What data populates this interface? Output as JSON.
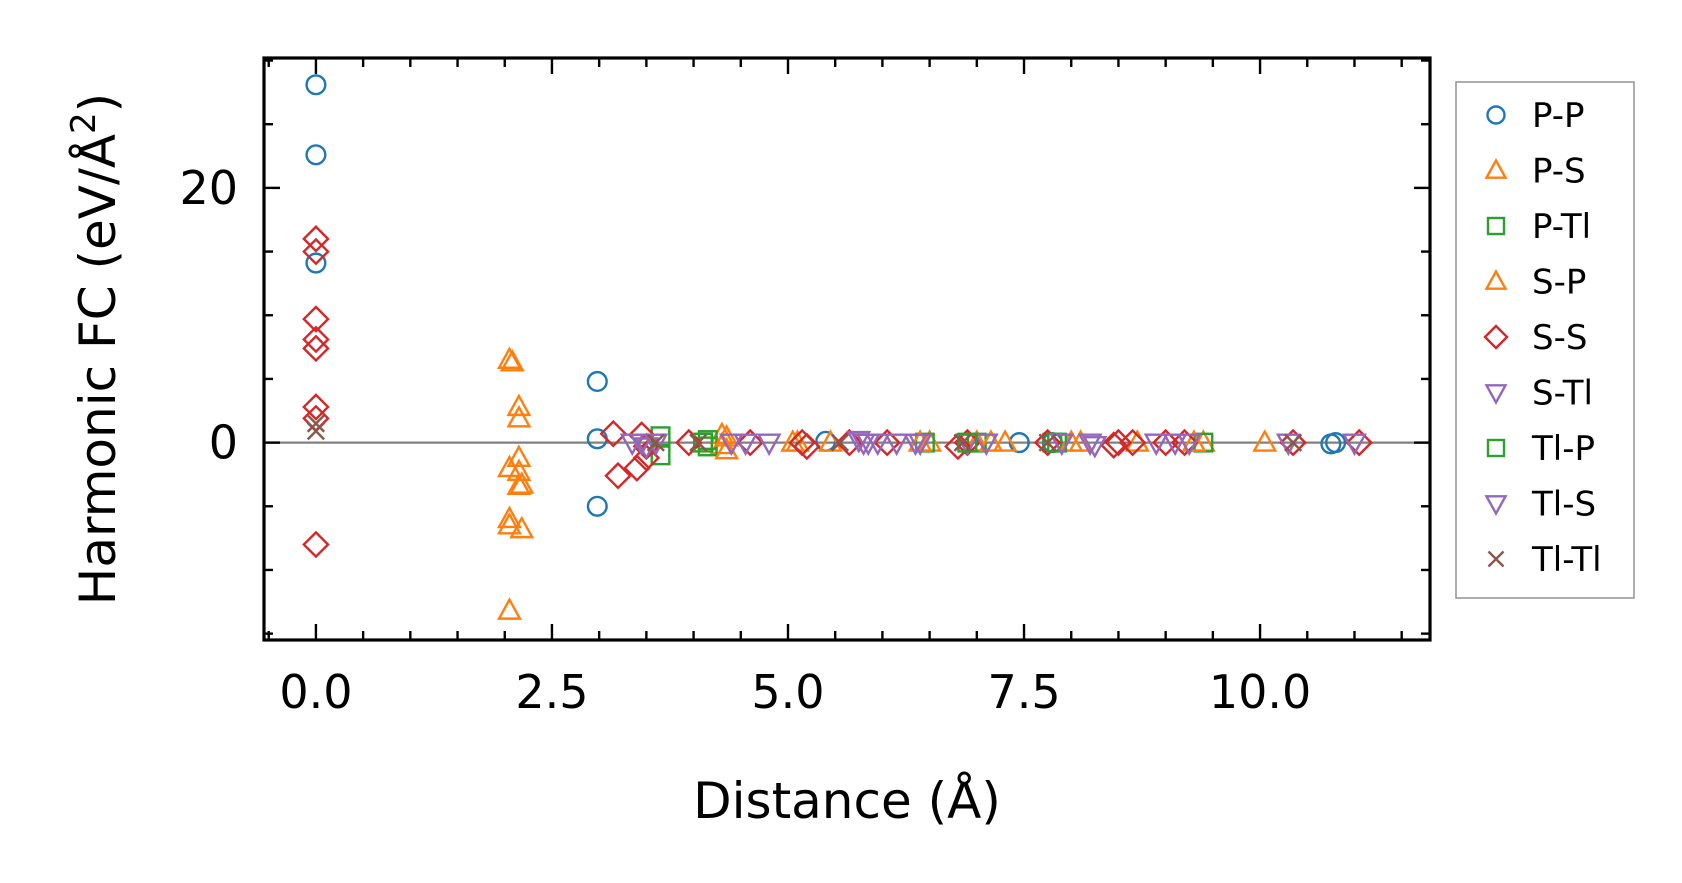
{
  "chart_data": {
    "type": "scatter",
    "title": "",
    "xlabel": "Distance (Å)",
    "ylabel_main": "Harmonic FC (eV/Å",
    "ylabel_sup": "2",
    "ylabel_close": ")",
    "xlim": [
      -0.55,
      11.8
    ],
    "ylim": [
      -15.5,
      30.2
    ],
    "xticks": [
      {
        "v": 0.0,
        "label": "0.0"
      },
      {
        "v": 2.5,
        "label": "2.5"
      },
      {
        "v": 5.0,
        "label": "5.0"
      },
      {
        "v": 7.5,
        "label": "7.5"
      },
      {
        "v": 10.0,
        "label": "10.0"
      }
    ],
    "yticks": [
      {
        "v": 0,
        "label": "0"
      },
      {
        "v": 20,
        "label": "20"
      }
    ],
    "x_minor_step": 0.5,
    "y_minor_step": 5,
    "zero_line": true,
    "legend_position": "right",
    "series": [
      {
        "name": "P-P",
        "marker": "circle",
        "color": "#1f77b4",
        "points": [
          [
            0,
            28.1
          ],
          [
            0,
            22.6
          ],
          [
            0,
            14.1
          ],
          [
            2.98,
            4.8
          ],
          [
            2.98,
            0.3
          ],
          [
            2.98,
            -5.0
          ],
          [
            5.4,
            0.1
          ],
          [
            7.45,
            0
          ],
          [
            7.8,
            0
          ],
          [
            10.75,
            -0.1
          ],
          [
            10.8,
            0
          ]
        ]
      },
      {
        "name": "P-S",
        "marker": "triangle-up",
        "color": "#ff7f0e",
        "points": [
          [
            2.05,
            6.5
          ],
          [
            2.08,
            6.3
          ],
          [
            2.05,
            -2.0
          ],
          [
            2.05,
            -6.0
          ],
          [
            2.05,
            -6.5
          ],
          [
            2.05,
            -13.2
          ],
          [
            2.15,
            2.8
          ],
          [
            2.15,
            1.9
          ],
          [
            2.15,
            -1.2
          ],
          [
            2.15,
            -2.3
          ],
          [
            2.15,
            -3.4
          ],
          [
            2.18,
            -3.3
          ],
          [
            2.18,
            -6.8
          ],
          [
            4.3,
            0.6
          ],
          [
            4.3,
            -0.2
          ],
          [
            5.1,
            0
          ],
          [
            5.45,
            0
          ],
          [
            6.5,
            0
          ],
          [
            7.0,
            0
          ],
          [
            7.3,
            0
          ],
          [
            8.1,
            0
          ],
          [
            8.7,
            0
          ],
          [
            9.4,
            0
          ],
          [
            10.05,
            0
          ]
        ]
      },
      {
        "name": "P-Tl",
        "marker": "square",
        "color": "#2ca02c",
        "points": [
          [
            3.65,
            0.5
          ],
          [
            3.65,
            -1.0
          ],
          [
            4.15,
            0.2
          ],
          [
            4.15,
            -0.3
          ],
          [
            6.45,
            0
          ],
          [
            7.0,
            0
          ],
          [
            7.8,
            0
          ],
          [
            9.4,
            0
          ]
        ]
      },
      {
        "name": "S-P",
        "marker": "triangle-up",
        "color": "#ff7f0e",
        "points": [
          [
            4.35,
            0.4
          ],
          [
            4.35,
            -0.6
          ],
          [
            5.05,
            0
          ],
          [
            6.4,
            0
          ],
          [
            7.15,
            0
          ],
          [
            8.0,
            0
          ],
          [
            9.3,
            0
          ]
        ]
      },
      {
        "name": "S-S",
        "marker": "diamond",
        "color": "#d62728",
        "points": [
          [
            0,
            16.0
          ],
          [
            0,
            15.0
          ],
          [
            0,
            9.7
          ],
          [
            0,
            8.1
          ],
          [
            0,
            7.4
          ],
          [
            0,
            2.8
          ],
          [
            0,
            1.9
          ],
          [
            0,
            -8.0
          ],
          [
            3.15,
            0.7
          ],
          [
            3.2,
            -2.6
          ],
          [
            3.4,
            -2.0
          ],
          [
            3.45,
            0.6
          ],
          [
            3.5,
            -0.3
          ],
          [
            3.5,
            -1.2
          ],
          [
            3.95,
            0
          ],
          [
            4.6,
            0
          ],
          [
            5.15,
            0
          ],
          [
            5.2,
            -0.3
          ],
          [
            5.65,
            0
          ],
          [
            6.05,
            0
          ],
          [
            6.8,
            -0.3
          ],
          [
            6.9,
            0
          ],
          [
            7.75,
            0
          ],
          [
            8.45,
            -0.2
          ],
          [
            8.5,
            0
          ],
          [
            8.65,
            0
          ],
          [
            9.0,
            0
          ],
          [
            9.2,
            0
          ],
          [
            10.35,
            0
          ],
          [
            11.05,
            0
          ]
        ]
      },
      {
        "name": "S-Tl",
        "marker": "triangle-down",
        "color": "#9467bd",
        "points": [
          [
            3.35,
            0
          ],
          [
            3.45,
            0
          ],
          [
            3.5,
            -0.3
          ],
          [
            3.6,
            0
          ],
          [
            4.4,
            0
          ],
          [
            4.55,
            0
          ],
          [
            4.8,
            0
          ],
          [
            5.75,
            0.2
          ],
          [
            5.85,
            0
          ],
          [
            5.95,
            0
          ],
          [
            6.15,
            0
          ],
          [
            6.4,
            0
          ],
          [
            6.9,
            0
          ],
          [
            7.1,
            0
          ],
          [
            8.2,
            0
          ],
          [
            8.25,
            -0.2
          ],
          [
            8.9,
            0
          ],
          [
            9.1,
            0
          ],
          [
            10.3,
            0
          ],
          [
            11.0,
            0
          ]
        ]
      },
      {
        "name": "Tl-P",
        "marker": "square",
        "color": "#2ca02c",
        "points": [
          [
            4.1,
            0
          ],
          [
            6.9,
            0
          ],
          [
            7.85,
            0
          ]
        ]
      },
      {
        "name": "Tl-S",
        "marker": "triangle-down",
        "color": "#9467bd",
        "points": [
          [
            5.8,
            0
          ],
          [
            6.35,
            0
          ],
          [
            7.9,
            0
          ],
          [
            9.25,
            0
          ]
        ]
      },
      {
        "name": "Tl-Tl",
        "marker": "x",
        "color": "#8c564b",
        "points": [
          [
            0,
            1.5
          ],
          [
            0,
            0.9
          ],
          [
            3.6,
            0
          ],
          [
            4.05,
            0
          ],
          [
            5.55,
            0
          ],
          [
            6.85,
            0
          ],
          [
            7.75,
            0
          ],
          [
            10.35,
            0
          ]
        ]
      }
    ]
  }
}
